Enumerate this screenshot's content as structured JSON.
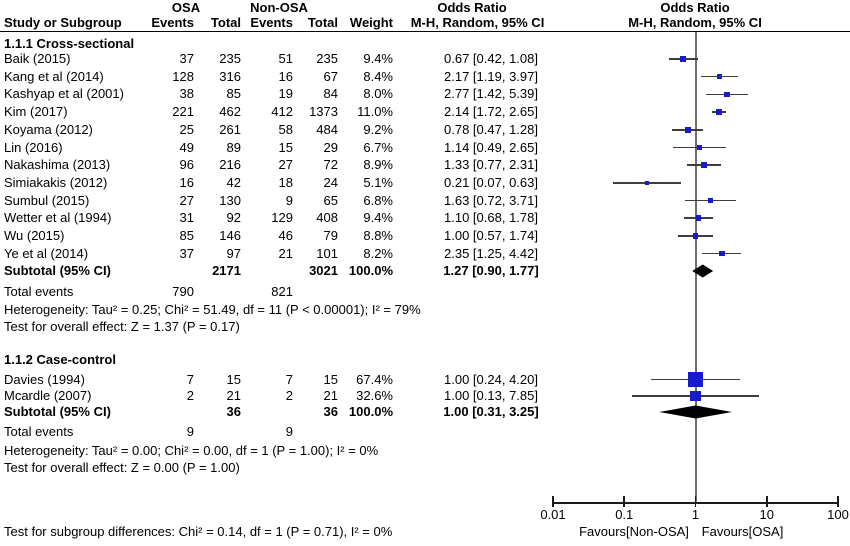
{
  "header": {
    "group1": "OSA",
    "group2": "Non-OSA",
    "col_study": "Study or Subgroup",
    "col_events": "Events",
    "col_total": "Total",
    "col_weight": "Weight",
    "or_col_line1": "Odds Ratio",
    "or_col_line2": "M-H, Random, 95% CI",
    "plot_col_line1": "Odds Ratio",
    "plot_col_line2": "M-H, Random, 95% CI"
  },
  "chart_data": {
    "type": "forest",
    "title": "Odds Ratio",
    "effect_measure": "M-H, Random, 95% CI",
    "x_axis": {
      "scale": "log",
      "xlim": [
        0.01,
        100
      ],
      "ticks": [
        0.01,
        0.1,
        1,
        10,
        100
      ],
      "tick_labels": [
        "0.01",
        "0.1",
        "1",
        "10",
        "100"
      ],
      "label_left": "Favours[Non-OSA]",
      "label_right": "Favours[OSA]"
    },
    "subgroups": [
      {
        "label": "1.1.1 Cross-sectional",
        "studies": [
          {
            "name": "Baik (2015)",
            "osa_events": 37,
            "osa_total": 235,
            "nonosa_events": 51,
            "nonosa_total": 235,
            "weight": "9.4%",
            "weight_value": 9.4,
            "or": 0.67,
            "ci_low": 0.42,
            "ci_high": 1.08,
            "or_label": "0.67 [0.42, 1.08]"
          },
          {
            "name": "Kang et al (2014)",
            "osa_events": 128,
            "osa_total": 316,
            "nonosa_events": 16,
            "nonosa_total": 67,
            "weight": "8.4%",
            "weight_value": 8.4,
            "or": 2.17,
            "ci_low": 1.19,
            "ci_high": 3.97,
            "or_label": "2.17 [1.19, 3.97]"
          },
          {
            "name": "Kashyap et al (2001)",
            "osa_events": 38,
            "osa_total": 85,
            "nonosa_events": 19,
            "nonosa_total": 84,
            "weight": "8.0%",
            "weight_value": 8.0,
            "or": 2.77,
            "ci_low": 1.42,
            "ci_high": 5.39,
            "or_label": "2.77 [1.42, 5.39]"
          },
          {
            "name": "Kim (2017)",
            "osa_events": 221,
            "osa_total": 462,
            "nonosa_events": 412,
            "nonosa_total": 1373,
            "weight": "11.0%",
            "weight_value": 11.0,
            "or": 2.14,
            "ci_low": 1.72,
            "ci_high": 2.65,
            "or_label": "2.14 [1.72, 2.65]"
          },
          {
            "name": "Koyama (2012)",
            "osa_events": 25,
            "osa_total": 261,
            "nonosa_events": 58,
            "nonosa_total": 484,
            "weight": "9.2%",
            "weight_value": 9.2,
            "or": 0.78,
            "ci_low": 0.47,
            "ci_high": 1.28,
            "or_label": "0.78 [0.47, 1.28]"
          },
          {
            "name": "Lin (2016)",
            "osa_events": 49,
            "osa_total": 89,
            "nonosa_events": 15,
            "nonosa_total": 29,
            "weight": "6.7%",
            "weight_value": 6.7,
            "or": 1.14,
            "ci_low": 0.49,
            "ci_high": 2.65,
            "or_label": "1.14 [0.49, 2.65]"
          },
          {
            "name": "Nakashima (2013)",
            "osa_events": 96,
            "osa_total": 216,
            "nonosa_events": 27,
            "nonosa_total": 72,
            "weight": "8.9%",
            "weight_value": 8.9,
            "or": 1.33,
            "ci_low": 0.77,
            "ci_high": 2.31,
            "or_label": "1.33 [0.77, 2.31]"
          },
          {
            "name": "Simiakakis (2012)",
            "osa_events": 16,
            "osa_total": 42,
            "nonosa_events": 18,
            "nonosa_total": 24,
            "weight": "5.1%",
            "weight_value": 5.1,
            "or": 0.21,
            "ci_low": 0.07,
            "ci_high": 0.63,
            "or_label": "0.21 [0.07, 0.63]"
          },
          {
            "name": "Sumbul (2015)",
            "osa_events": 27,
            "osa_total": 130,
            "nonosa_events": 9,
            "nonosa_total": 65,
            "weight": "6.8%",
            "weight_value": 6.8,
            "or": 1.63,
            "ci_low": 0.72,
            "ci_high": 3.71,
            "or_label": "1.63 [0.72, 3.71]"
          },
          {
            "name": "Wetter et al (1994)",
            "osa_events": 31,
            "osa_total": 92,
            "nonosa_events": 129,
            "nonosa_total": 408,
            "weight": "9.4%",
            "weight_value": 9.4,
            "or": 1.1,
            "ci_low": 0.68,
            "ci_high": 1.78,
            "or_label": "1.10 [0.68, 1.78]"
          },
          {
            "name": "Wu (2015)",
            "osa_events": 85,
            "osa_total": 146,
            "nonosa_events": 46,
            "nonosa_total": 79,
            "weight": "8.8%",
            "weight_value": 8.8,
            "or": 1.0,
            "ci_low": 0.57,
            "ci_high": 1.74,
            "or_label": "1.00 [0.57, 1.74]"
          },
          {
            "name": "Ye et al (2014)",
            "osa_events": 37,
            "osa_total": 97,
            "nonosa_events": 21,
            "nonosa_total": 101,
            "weight": "8.2%",
            "weight_value": 8.2,
            "or": 2.35,
            "ci_low": 1.25,
            "ci_high": 4.42,
            "or_label": "2.35 [1.25, 4.42]"
          }
        ],
        "subtotal": {
          "label": "Subtotal (95% CI)",
          "osa_total": 2171,
          "nonosa_total": 3021,
          "weight": "100.0%",
          "or": 1.27,
          "ci_low": 0.9,
          "ci_high": 1.77,
          "or_label": "1.27 [0.90, 1.77]"
        },
        "total_events": {
          "label": "Total events",
          "osa": 790,
          "nonosa": 821
        },
        "heterogeneity": "Heterogeneity: Tau² = 0.25; Chi² = 51.49, df = 11 (P < 0.00001); I² = 79%",
        "overall_effect": "Test for overall effect: Z = 1.37 (P = 0.17)"
      },
      {
        "label": "1.1.2 Case-control",
        "studies": [
          {
            "name": "Davies (1994)",
            "osa_events": 7,
            "osa_total": 15,
            "nonosa_events": 7,
            "nonosa_total": 15,
            "weight": "67.4%",
            "weight_value": 67.4,
            "or": 1.0,
            "ci_low": 0.24,
            "ci_high": 4.2,
            "or_label": "1.00 [0.24, 4.20]"
          },
          {
            "name": "Mcardle (2007)",
            "osa_events": 2,
            "osa_total": 21,
            "nonosa_events": 2,
            "nonosa_total": 21,
            "weight": "32.6%",
            "weight_value": 32.6,
            "or": 1.0,
            "ci_low": 0.13,
            "ci_high": 7.85,
            "or_label": "1.00 [0.13, 7.85]"
          }
        ],
        "subtotal": {
          "label": "Subtotal (95% CI)",
          "osa_total": 36,
          "nonosa_total": 36,
          "weight": "100.0%",
          "or": 1.0,
          "ci_low": 0.31,
          "ci_high": 3.25,
          "or_label": "1.00 [0.31, 3.25]"
        },
        "total_events": {
          "label": "Total events",
          "osa": 9,
          "nonosa": 9
        },
        "heterogeneity": "Heterogeneity: Tau² = 0.00; Chi² = 0.00, df = 1 (P = 1.00); I² = 0%",
        "overall_effect": "Test for overall effect: Z = 0.00 (P = 1.00)"
      }
    ],
    "footer": "Test for subgroup differences: Chi² = 0.14, df = 1 (P = 0.71), I² = 0%"
  },
  "colors": {
    "square": "#1a1acd",
    "diamond": "#000000",
    "ci_line": "#3d3d3d",
    "center_line": "#6e6e6e",
    "axis_line": "#1a1a1a",
    "text": "#000000",
    "background": "#ffffff"
  }
}
